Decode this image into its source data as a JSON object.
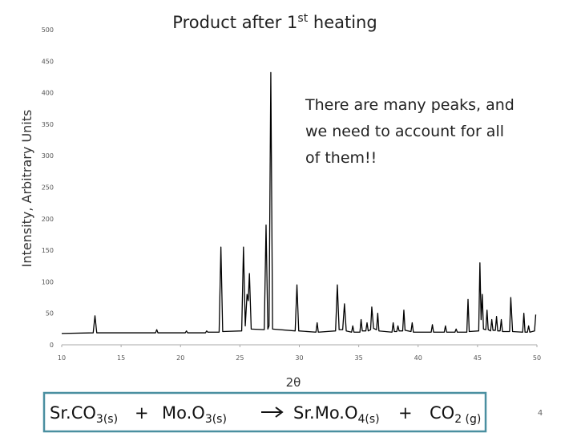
{
  "chart_data": {
    "type": "line",
    "title": {
      "text": "Product after 1",
      "sup": "st",
      "rest": " heating"
    },
    "ylabel": "Intensity, Arbitrary Units",
    "xlabel": "2θ",
    "annotation": [
      "There are many peaks, and",
      "we need to account for all",
      "of them!!"
    ],
    "color": "#000000",
    "xlim": [
      10,
      50
    ],
    "xticks": [
      10,
      15,
      20,
      25,
      30,
      35,
      40,
      45,
      50
    ],
    "ylim": [
      0,
      500
    ],
    "yticks": [
      0,
      50,
      100,
      150,
      200,
      250,
      300,
      350,
      400,
      450,
      500
    ],
    "grid": false,
    "x": [
      10,
      12.65,
      12.8,
      12.95,
      17.9,
      18.0,
      18.1,
      20.4,
      20.5,
      20.6,
      22.1,
      22.2,
      22.3,
      23.25,
      23.4,
      23.55,
      25.15,
      25.3,
      25.45,
      25.6,
      25.7,
      25.8,
      25.95,
      27.05,
      27.2,
      27.35,
      27.45,
      27.6,
      27.75,
      29.65,
      29.8,
      29.95,
      31.4,
      31.5,
      31.6,
      33.05,
      33.2,
      33.35,
      33.65,
      33.8,
      33.95,
      34.4,
      34.5,
      34.6,
      35.1,
      35.2,
      35.3,
      35.6,
      35.7,
      35.8,
      36.0,
      36.1,
      36.25,
      36.5,
      36.6,
      36.7,
      37.8,
      37.9,
      38.0,
      38.2,
      38.3,
      38.4,
      38.7,
      38.8,
      38.9,
      39.4,
      39.5,
      39.6,
      41.1,
      41.2,
      41.3,
      42.2,
      42.3,
      42.4,
      43.1,
      43.2,
      43.3,
      44.1,
      44.2,
      44.3,
      45.1,
      45.2,
      45.3,
      45.4,
      45.5,
      45.7,
      45.8,
      45.9,
      46.1,
      46.2,
      46.3,
      46.5,
      46.6,
      46.7,
      46.9,
      47.0,
      47.1,
      47.7,
      47.8,
      47.95,
      48.8,
      48.9,
      49.0,
      49.2,
      49.3,
      49.4,
      49.8,
      49.9
    ],
    "y": [
      18,
      19,
      46,
      19,
      19,
      24,
      19,
      19,
      22,
      19,
      19,
      22,
      20,
      20,
      155,
      21,
      22,
      155,
      30,
      80,
      70,
      113,
      25,
      24,
      190,
      25,
      30,
      432,
      25,
      22,
      95,
      22,
      20,
      35,
      20,
      22,
      95,
      24,
      24,
      65,
      22,
      20,
      30,
      20,
      20,
      40,
      22,
      22,
      35,
      22,
      24,
      60,
      26,
      24,
      50,
      22,
      20,
      35,
      21,
      21,
      30,
      22,
      22,
      55,
      23,
      21,
      35,
      20,
      20,
      32,
      20,
      20,
      30,
      20,
      20,
      25,
      20,
      20,
      72,
      21,
      22,
      130,
      40,
      80,
      25,
      24,
      55,
      24,
      22,
      40,
      23,
      23,
      45,
      22,
      22,
      40,
      21,
      21,
      75,
      21,
      20,
      50,
      20,
      20,
      30,
      20,
      22,
      48
    ]
  },
  "equation": [
    {
      "text": "Sr.CO",
      "sub": "3(s)"
    },
    {
      "text": "+"
    },
    {
      "text": "Mo.O",
      "sub": "3(s)"
    },
    {
      "text": "Sr.Mo.O",
      "sub": "4(s)"
    },
    {
      "text": "+"
    },
    {
      "text": "CO",
      "sub": "2 (g)"
    }
  ],
  "slide_number": "4"
}
